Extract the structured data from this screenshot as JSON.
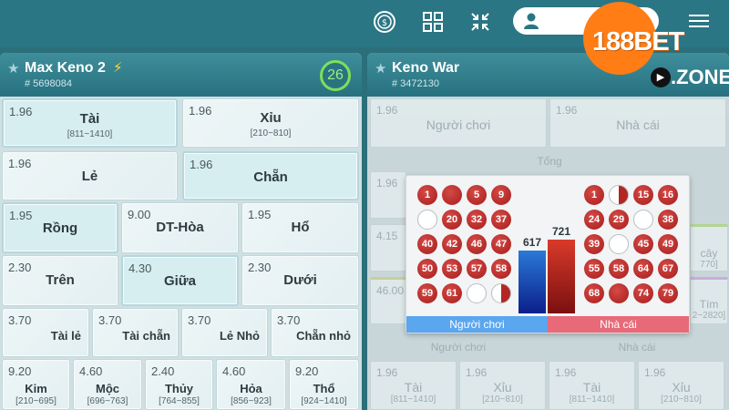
{
  "header": {
    "logo_text": "188BET",
    "logo_suffix": ".ZONE"
  },
  "left_panel": {
    "title": "Max Keno 2",
    "game_id": "# 5698084",
    "timer": "26",
    "cells": [
      {
        "odds": "1.96",
        "name": "Tài",
        "range": "[811~1410]"
      },
      {
        "odds": "1.96",
        "name": "Xỉu",
        "range": "[210~810]"
      },
      {
        "odds": "1.96",
        "name": "Lẻ",
        "range": ""
      },
      {
        "odds": "1.96",
        "name": "Chẵn",
        "range": ""
      },
      {
        "odds": "1.95",
        "name": "Rồng",
        "range": ""
      },
      {
        "odds": "9.00",
        "name": "DT-Hòa",
        "range": ""
      },
      {
        "odds": "1.95",
        "name": "Hổ",
        "range": ""
      },
      {
        "odds": "2.30",
        "name": "Trên",
        "range": ""
      },
      {
        "odds": "4.30",
        "name": "Giữa",
        "range": ""
      },
      {
        "odds": "2.30",
        "name": "Dưới",
        "range": ""
      },
      {
        "odds": "3.70",
        "name": "Tài lẻ",
        "range": ""
      },
      {
        "odds": "3.70",
        "name": "Tài chẵn",
        "range": ""
      },
      {
        "odds": "3.70",
        "name": "Lẻ Nhỏ",
        "range": ""
      },
      {
        "odds": "3.70",
        "name": "Chẵn nhỏ",
        "range": ""
      },
      {
        "odds": "9.20",
        "name": "Kim",
        "range": "[210~695]"
      },
      {
        "odds": "4.60",
        "name": "Mộc",
        "range": "[696~763]"
      },
      {
        "odds": "2.40",
        "name": "Thủy",
        "range": "[764~855]"
      },
      {
        "odds": "4.60",
        "name": "Hỏa",
        "range": "[856~923]"
      },
      {
        "odds": "9.20",
        "name": "Thổ",
        "range": "[924~1410]"
      }
    ]
  },
  "right_panel": {
    "title": "Keno War",
    "game_id": "# 3472130",
    "top_row": [
      {
        "odds": "1.96",
        "name": "Người chơi"
      },
      {
        "odds": "1.96",
        "name": "Nhà cái"
      }
    ],
    "total_label": "Tổng",
    "side_odds": [
      "1.96",
      "4.15",
      "46.00"
    ],
    "side_right": [
      {
        "name": "cây",
        "range": "770]"
      },
      {
        "name": "Tím",
        "range": "2~2820]"
      }
    ],
    "bottom_labels": [
      "Người chơi",
      "Nhà cái"
    ],
    "bottom_cells": [
      {
        "odds": "1.96",
        "name": "Tài",
        "range": "[811~1410]"
      },
      {
        "odds": "1.96",
        "name": "Xỉu",
        "range": "[210~810]"
      },
      {
        "odds": "1.96",
        "name": "Tài",
        "range": "[811~1410]"
      },
      {
        "odds": "1.96",
        "name": "Xỉu",
        "range": "[210~810]"
      }
    ]
  },
  "popup": {
    "player_balls": [
      "1",
      "",
      "5",
      "9",
      "",
      "20",
      "32",
      "37",
      "40",
      "42",
      "46",
      "47",
      "50",
      "53",
      "57",
      "58",
      "59",
      "61",
      "",
      ""
    ],
    "player_states": [
      "red",
      "red",
      "red",
      "red",
      "empty",
      "red",
      "red",
      "red",
      "red",
      "red",
      "red",
      "red",
      "red",
      "red",
      "red",
      "red",
      "red",
      "red",
      "empty",
      "half"
    ],
    "dealer_balls": [
      "1",
      "",
      "15",
      "16",
      "24",
      "29",
      "",
      "38",
      "39",
      "",
      "45",
      "49",
      "55",
      "58",
      "64",
      "67",
      "68",
      "",
      "74",
      "79"
    ],
    "dealer_states": [
      "red",
      "half",
      "red",
      "red",
      "red",
      "red",
      "empty",
      "red",
      "red",
      "empty",
      "red",
      "red",
      "red",
      "red",
      "red",
      "red",
      "red",
      "red",
      "red",
      "red"
    ],
    "player_total": 617,
    "dealer_total": 721,
    "player_label": "Người chơi",
    "dealer_label": "Nhà cái",
    "colors": {
      "player": "#2a79d8",
      "dealer": "#d93a2a",
      "player_foot": "#5aa6ef",
      "dealer_foot": "#e86a78"
    }
  }
}
